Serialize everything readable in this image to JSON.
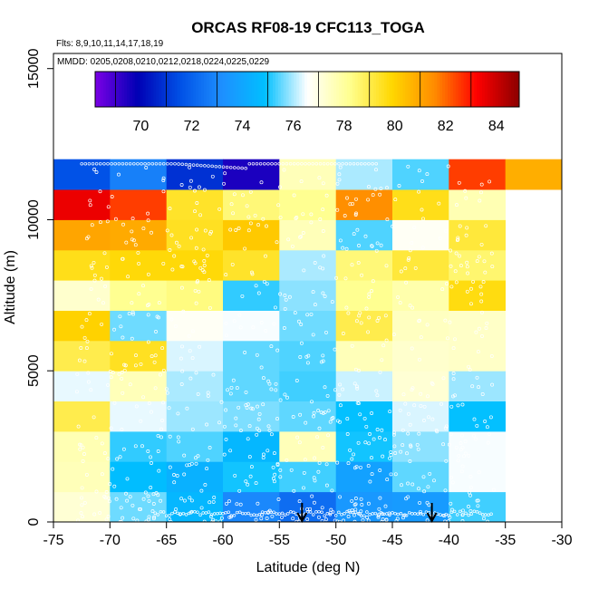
{
  "chart_data": {
    "type": "heatmap",
    "title": "ORCAS RF08-19 CFC113_TOGA",
    "subtitle_flights": "Flts: 8,9,10,11,14,17,18,19",
    "subtitle_dates": "MMDD: 0205,0208,0210,0212,0218,0224,0225,0229",
    "xlabel": "Latitude (deg N)",
    "ylabel": "Altitude (m)",
    "xlim": [
      -75,
      -30
    ],
    "ylim": [
      0,
      15500
    ],
    "x_ticks": [
      -75,
      -70,
      -65,
      -60,
      -55,
      -50,
      -45,
      -40,
      -35,
      -30
    ],
    "y_ticks": [
      0,
      5000,
      10000,
      15000
    ],
    "x_bin_edges": [
      -75,
      -70,
      -65,
      -60,
      -55,
      -50,
      -45,
      -40,
      -35,
      -30
    ],
    "y_bin_edges": [
      0,
      1000,
      2000,
      3000,
      4000,
      5000,
      6000,
      7000,
      8000,
      9000,
      10000,
      11000,
      12000
    ],
    "color_scale": {
      "min": 68.2,
      "max": 84.9,
      "colors": [
        "#7b00e6",
        "#0000b4",
        "#0050e6",
        "#1e90ff",
        "#00bfff",
        "#ffffff",
        "#ffff90",
        "#ffd700",
        "#ff8c00",
        "#ff0000",
        "#8b0000"
      ],
      "tick_values": [
        70,
        72,
        74,
        76,
        78,
        80,
        82,
        84
      ],
      "tick_labels": [
        "70",
        "72",
        "74",
        "76",
        "78",
        "80",
        "82",
        "84"
      ]
    },
    "values_rows_low_to_high": [
      [
        77.2,
        75.6,
        74.6,
        73.0,
        72.3,
        73.5,
        73.6,
        75.3,
        null
      ],
      [
        77.6,
        74.8,
        74.4,
        75.0,
        75.3,
        73.8,
        75.5,
        76.5,
        null
      ],
      [
        77.7,
        75.2,
        75.4,
        74.6,
        77.6,
        75.0,
        75.8,
        76.5,
        null
      ],
      [
        79.0,
        76.4,
        75.9,
        75.7,
        75.5,
        74.9,
        76.3,
        74.9,
        null
      ],
      [
        76.4,
        77.6,
        76.0,
        75.5,
        75.3,
        76.2,
        77.2,
        75.9,
        null
      ],
      [
        79.0,
        79.5,
        76.3,
        75.5,
        75.4,
        77.6,
        77.3,
        77.4,
        null
      ],
      [
        80.0,
        75.6,
        76.7,
        76.5,
        75.6,
        79.0,
        77.5,
        77.4,
        null
      ],
      [
        77.3,
        78.2,
        78.4,
        75.2,
        75.8,
        78.2,
        77.8,
        79.7,
        null
      ],
      [
        79.6,
        79.8,
        79.8,
        79.4,
        76.0,
        78.5,
        79.2,
        78.6,
        null
      ],
      [
        81.0,
        80.9,
        79.5,
        80.2,
        77.6,
        75.4,
        76.7,
        79.2,
        null
      ],
      [
        83.5,
        82.5,
        79.4,
        78.5,
        78.2,
        81.5,
        79.6,
        77.7,
        null
      ],
      [
        71.6,
        72.8,
        70.9,
        69.5,
        77.6,
        76.0,
        75.4,
        82.5,
        80.8
      ]
    ],
    "arrows_latitude": [
      -53.0,
      -41.5
    ],
    "legend_placement": "top, inside plot area"
  }
}
